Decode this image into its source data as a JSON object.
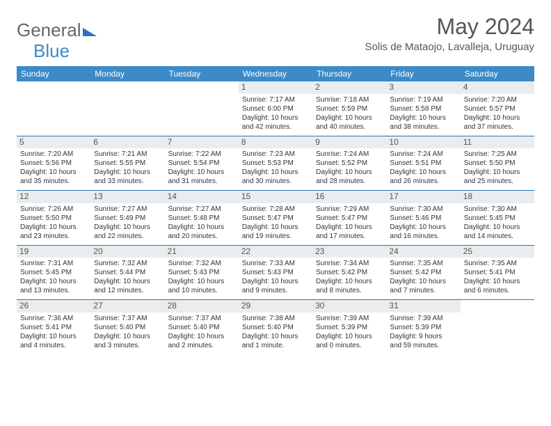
{
  "logo": {
    "part1": "General",
    "part2": "Blue"
  },
  "title": "May 2024",
  "location": "Solis de Mataojo, Lavalleja, Uruguay",
  "colors": {
    "header_bg": "#3b8bc9",
    "daynum_bg": "#e9edef",
    "rule": "#2b72b8"
  },
  "day_headers": [
    "Sunday",
    "Monday",
    "Tuesday",
    "Wednesday",
    "Thursday",
    "Friday",
    "Saturday"
  ],
  "weeks": [
    [
      null,
      null,
      null,
      {
        "n": "1",
        "sr": "Sunrise: 7:17 AM",
        "ss": "Sunset: 6:00 PM",
        "d1": "Daylight: 10 hours",
        "d2": "and 42 minutes."
      },
      {
        "n": "2",
        "sr": "Sunrise: 7:18 AM",
        "ss": "Sunset: 5:59 PM",
        "d1": "Daylight: 10 hours",
        "d2": "and 40 minutes."
      },
      {
        "n": "3",
        "sr": "Sunrise: 7:19 AM",
        "ss": "Sunset: 5:58 PM",
        "d1": "Daylight: 10 hours",
        "d2": "and 38 minutes."
      },
      {
        "n": "4",
        "sr": "Sunrise: 7:20 AM",
        "ss": "Sunset: 5:57 PM",
        "d1": "Daylight: 10 hours",
        "d2": "and 37 minutes."
      }
    ],
    [
      {
        "n": "5",
        "sr": "Sunrise: 7:20 AM",
        "ss": "Sunset: 5:56 PM",
        "d1": "Daylight: 10 hours",
        "d2": "and 35 minutes."
      },
      {
        "n": "6",
        "sr": "Sunrise: 7:21 AM",
        "ss": "Sunset: 5:55 PM",
        "d1": "Daylight: 10 hours",
        "d2": "and 33 minutes."
      },
      {
        "n": "7",
        "sr": "Sunrise: 7:22 AM",
        "ss": "Sunset: 5:54 PM",
        "d1": "Daylight: 10 hours",
        "d2": "and 31 minutes."
      },
      {
        "n": "8",
        "sr": "Sunrise: 7:23 AM",
        "ss": "Sunset: 5:53 PM",
        "d1": "Daylight: 10 hours",
        "d2": "and 30 minutes."
      },
      {
        "n": "9",
        "sr": "Sunrise: 7:24 AM",
        "ss": "Sunset: 5:52 PM",
        "d1": "Daylight: 10 hours",
        "d2": "and 28 minutes."
      },
      {
        "n": "10",
        "sr": "Sunrise: 7:24 AM",
        "ss": "Sunset: 5:51 PM",
        "d1": "Daylight: 10 hours",
        "d2": "and 26 minutes."
      },
      {
        "n": "11",
        "sr": "Sunrise: 7:25 AM",
        "ss": "Sunset: 5:50 PM",
        "d1": "Daylight: 10 hours",
        "d2": "and 25 minutes."
      }
    ],
    [
      {
        "n": "12",
        "sr": "Sunrise: 7:26 AM",
        "ss": "Sunset: 5:50 PM",
        "d1": "Daylight: 10 hours",
        "d2": "and 23 minutes."
      },
      {
        "n": "13",
        "sr": "Sunrise: 7:27 AM",
        "ss": "Sunset: 5:49 PM",
        "d1": "Daylight: 10 hours",
        "d2": "and 22 minutes."
      },
      {
        "n": "14",
        "sr": "Sunrise: 7:27 AM",
        "ss": "Sunset: 5:48 PM",
        "d1": "Daylight: 10 hours",
        "d2": "and 20 minutes."
      },
      {
        "n": "15",
        "sr": "Sunrise: 7:28 AM",
        "ss": "Sunset: 5:47 PM",
        "d1": "Daylight: 10 hours",
        "d2": "and 19 minutes."
      },
      {
        "n": "16",
        "sr": "Sunrise: 7:29 AM",
        "ss": "Sunset: 5:47 PM",
        "d1": "Daylight: 10 hours",
        "d2": "and 17 minutes."
      },
      {
        "n": "17",
        "sr": "Sunrise: 7:30 AM",
        "ss": "Sunset: 5:46 PM",
        "d1": "Daylight: 10 hours",
        "d2": "and 16 minutes."
      },
      {
        "n": "18",
        "sr": "Sunrise: 7:30 AM",
        "ss": "Sunset: 5:45 PM",
        "d1": "Daylight: 10 hours",
        "d2": "and 14 minutes."
      }
    ],
    [
      {
        "n": "19",
        "sr": "Sunrise: 7:31 AM",
        "ss": "Sunset: 5:45 PM",
        "d1": "Daylight: 10 hours",
        "d2": "and 13 minutes."
      },
      {
        "n": "20",
        "sr": "Sunrise: 7:32 AM",
        "ss": "Sunset: 5:44 PM",
        "d1": "Daylight: 10 hours",
        "d2": "and 12 minutes."
      },
      {
        "n": "21",
        "sr": "Sunrise: 7:32 AM",
        "ss": "Sunset: 5:43 PM",
        "d1": "Daylight: 10 hours",
        "d2": "and 10 minutes."
      },
      {
        "n": "22",
        "sr": "Sunrise: 7:33 AM",
        "ss": "Sunset: 5:43 PM",
        "d1": "Daylight: 10 hours",
        "d2": "and 9 minutes."
      },
      {
        "n": "23",
        "sr": "Sunrise: 7:34 AM",
        "ss": "Sunset: 5:42 PM",
        "d1": "Daylight: 10 hours",
        "d2": "and 8 minutes."
      },
      {
        "n": "24",
        "sr": "Sunrise: 7:35 AM",
        "ss": "Sunset: 5:42 PM",
        "d1": "Daylight: 10 hours",
        "d2": "and 7 minutes."
      },
      {
        "n": "25",
        "sr": "Sunrise: 7:35 AM",
        "ss": "Sunset: 5:41 PM",
        "d1": "Daylight: 10 hours",
        "d2": "and 6 minutes."
      }
    ],
    [
      {
        "n": "26",
        "sr": "Sunrise: 7:36 AM",
        "ss": "Sunset: 5:41 PM",
        "d1": "Daylight: 10 hours",
        "d2": "and 4 minutes."
      },
      {
        "n": "27",
        "sr": "Sunrise: 7:37 AM",
        "ss": "Sunset: 5:40 PM",
        "d1": "Daylight: 10 hours",
        "d2": "and 3 minutes."
      },
      {
        "n": "28",
        "sr": "Sunrise: 7:37 AM",
        "ss": "Sunset: 5:40 PM",
        "d1": "Daylight: 10 hours",
        "d2": "and 2 minutes."
      },
      {
        "n": "29",
        "sr": "Sunrise: 7:38 AM",
        "ss": "Sunset: 5:40 PM",
        "d1": "Daylight: 10 hours",
        "d2": "and 1 minute."
      },
      {
        "n": "30",
        "sr": "Sunrise: 7:39 AM",
        "ss": "Sunset: 5:39 PM",
        "d1": "Daylight: 10 hours",
        "d2": "and 0 minutes."
      },
      {
        "n": "31",
        "sr": "Sunrise: 7:39 AM",
        "ss": "Sunset: 5:39 PM",
        "d1": "Daylight: 9 hours",
        "d2": "and 59 minutes."
      },
      null
    ]
  ]
}
